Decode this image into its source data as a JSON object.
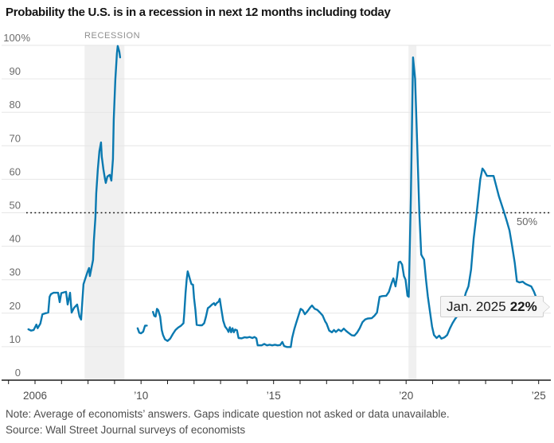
{
  "title": "Probability the U.S. is in a recession in next 12 months including today",
  "note": "Note: Average of economists’ answers. Gaps indicate question not asked or data unavailable.",
  "source": "Source: Wall Street Journal surveys of economists",
  "annotations": {
    "recession_label": "RECESSION",
    "threshold_label": "50%",
    "callout": {
      "date": "Jan. 2025",
      "value": "22%"
    }
  },
  "colors": {
    "line": "#0a79b0",
    "band": "#f0f0f0",
    "grid": "#e6e6e6",
    "axis": "#1a1a1a",
    "threshold": "#141414",
    "y_label": "#6b6b6b",
    "x_label": "#4d4d4d",
    "callout_bg": "#f6f6f6",
    "callout_border": "#cfcfcf"
  },
  "chart_data": {
    "type": "line",
    "title": "Probability the U.S. is in a recession in next 12 months including today",
    "xlabel": "",
    "ylabel": "",
    "x_unit": "year",
    "ylim": [
      0,
      100
    ],
    "xlim": [
      2005.6,
      2025.3
    ],
    "grid": "horizontal",
    "threshold": 50,
    "y_ticks": [
      {
        "value": 100,
        "label": "100",
        "suffix": "%"
      },
      {
        "value": 90,
        "label": "90",
        "suffix": ""
      },
      {
        "value": 80,
        "label": "80",
        "suffix": ""
      },
      {
        "value": 70,
        "label": "70",
        "suffix": ""
      },
      {
        "value": 60,
        "label": "60",
        "suffix": ""
      },
      {
        "value": 50,
        "label": "50",
        "suffix": ""
      },
      {
        "value": 40,
        "label": "40",
        "suffix": ""
      },
      {
        "value": 30,
        "label": "30",
        "suffix": ""
      },
      {
        "value": 20,
        "label": "20",
        "suffix": ""
      },
      {
        "value": 10,
        "label": "10",
        "suffix": ""
      },
      {
        "value": 0,
        "label": "0",
        "suffix": ""
      }
    ],
    "x_ticks": [
      {
        "year": 2006,
        "label": "2006"
      },
      {
        "year": 2010,
        "label": "’10"
      },
      {
        "year": 2015,
        "label": "’15"
      },
      {
        "year": 2020,
        "label": "’20"
      },
      {
        "year": 2025,
        "label": "’25"
      }
    ],
    "tick_years": [
      2005,
      2006,
      2007,
      2008,
      2009,
      2010,
      2011,
      2012,
      2013,
      2014,
      2015,
      2016,
      2017,
      2018,
      2019,
      2020,
      2021,
      2022,
      2023,
      2024,
      2025
    ],
    "recession_bands": [
      {
        "start": 2007.87,
        "end": 2009.37
      },
      {
        "start": 2020.09,
        "end": 2020.39
      }
    ],
    "series": [
      {
        "name": "Probability of recession (%)",
        "segments": [
          [
            [
              2005.75,
              15.2
            ],
            [
              2005.85,
              14.8
            ],
            [
              2005.95,
              15.0
            ],
            [
              2006.05,
              16.6
            ],
            [
              2006.1,
              15.5
            ],
            [
              2006.2,
              16.9
            ],
            [
              2006.28,
              19.7
            ],
            [
              2006.4,
              20.0
            ],
            [
              2006.5,
              20.2
            ],
            [
              2006.55,
              24.9
            ],
            [
              2006.6,
              25.7
            ],
            [
              2006.7,
              26.1
            ],
            [
              2006.87,
              26.1
            ],
            [
              2006.93,
              23.3
            ],
            [
              2006.99,
              26.0
            ],
            [
              2007.17,
              26.4
            ],
            [
              2007.23,
              22.6
            ],
            [
              2007.32,
              26.1
            ],
            [
              2007.38,
              20.2
            ],
            [
              2007.47,
              21.6
            ],
            [
              2007.59,
              22.6
            ],
            [
              2007.68,
              19.0
            ],
            [
              2007.74,
              18.1
            ],
            [
              2007.83,
              28.7
            ],
            [
              2007.98,
              32.3
            ],
            [
              2008.04,
              33.5
            ],
            [
              2008.07,
              31.1
            ],
            [
              2008.19,
              35.9
            ],
            [
              2008.22,
              41.6
            ],
            [
              2008.28,
              48.7
            ],
            [
              2008.31,
              55.8
            ],
            [
              2008.37,
              63.0
            ],
            [
              2008.43,
              68.4
            ],
            [
              2008.49,
              71.0
            ],
            [
              2008.52,
              66.7
            ],
            [
              2008.58,
              63.0
            ],
            [
              2008.64,
              60.1
            ],
            [
              2008.67,
              58.9
            ],
            [
              2008.73,
              60.8
            ],
            [
              2008.82,
              61.3
            ],
            [
              2008.88,
              59.6
            ],
            [
              2008.94,
              66.0
            ],
            [
              2008.97,
              77.9
            ],
            [
              2009.03,
              89.8
            ],
            [
              2009.09,
              97.6
            ],
            [
              2009.12,
              99.8
            ],
            [
              2009.18,
              98.1
            ],
            [
              2009.21,
              96.4
            ]
          ],
          [
            [
              2009.87,
              15.5
            ],
            [
              2009.93,
              14.2
            ],
            [
              2010.0,
              14.0
            ],
            [
              2010.08,
              14.5
            ],
            [
              2010.15,
              16.3
            ],
            [
              2010.22,
              16.3
            ]
          ],
          [
            [
              2010.45,
              20.4
            ],
            [
              2010.5,
              19.2
            ],
            [
              2010.55,
              19.0
            ],
            [
              2010.6,
              21.3
            ],
            [
              2010.65,
              20.9
            ],
            [
              2010.72,
              19.0
            ],
            [
              2010.78,
              15.0
            ],
            [
              2010.83,
              13.5
            ],
            [
              2010.9,
              12.2
            ],
            [
              2011.0,
              11.7
            ],
            [
              2011.1,
              12.4
            ],
            [
              2011.2,
              13.8
            ],
            [
              2011.3,
              15.0
            ],
            [
              2011.4,
              15.7
            ],
            [
              2011.5,
              16.2
            ],
            [
              2011.6,
              17.0
            ],
            [
              2011.63,
              20.0
            ],
            [
              2011.68,
              26.0
            ],
            [
              2011.72,
              30.0
            ],
            [
              2011.76,
              32.5
            ],
            [
              2011.8,
              31.5
            ],
            [
              2011.85,
              30.0
            ],
            [
              2011.9,
              28.7
            ],
            [
              2011.96,
              28.5
            ],
            [
              2012.0,
              24.5
            ],
            [
              2012.05,
              21.0
            ],
            [
              2012.1,
              16.5
            ],
            [
              2012.2,
              16.4
            ],
            [
              2012.3,
              16.4
            ],
            [
              2012.38,
              17.0
            ],
            [
              2012.45,
              19.0
            ],
            [
              2012.52,
              21.5
            ],
            [
              2012.6,
              22.0
            ],
            [
              2012.68,
              22.6
            ],
            [
              2012.75,
              23.0
            ],
            [
              2012.8,
              22.4
            ],
            [
              2012.85,
              23.0
            ],
            [
              2012.93,
              23.5
            ],
            [
              2012.97,
              24.3
            ],
            [
              2013.02,
              21.6
            ],
            [
              2013.1,
              17.8
            ],
            [
              2013.17,
              16.0
            ],
            [
              2013.25,
              15.2
            ],
            [
              2013.3,
              14.4
            ],
            [
              2013.35,
              15.8
            ],
            [
              2013.4,
              14.3
            ],
            [
              2013.45,
              15.5
            ],
            [
              2013.5,
              14.3
            ],
            [
              2013.55,
              15.1
            ],
            [
              2013.62,
              14.9
            ],
            [
              2013.68,
              12.6
            ],
            [
              2013.8,
              12.5
            ],
            [
              2013.9,
              12.8
            ],
            [
              2014.0,
              12.7
            ],
            [
              2014.1,
              12.9
            ],
            [
              2014.2,
              12.6
            ],
            [
              2014.28,
              12.9
            ],
            [
              2014.35,
              12.5
            ],
            [
              2014.4,
              10.4
            ],
            [
              2014.55,
              10.4
            ],
            [
              2014.65,
              10.8
            ],
            [
              2014.75,
              10.4
            ],
            [
              2014.85,
              10.6
            ],
            [
              2014.95,
              10.4
            ],
            [
              2015.05,
              10.6
            ],
            [
              2015.15,
              10.4
            ],
            [
              2015.25,
              10.5
            ],
            [
              2015.33,
              11.4
            ],
            [
              2015.4,
              10.2
            ],
            [
              2015.5,
              9.9
            ],
            [
              2015.65,
              9.9
            ],
            [
              2015.7,
              12.6
            ],
            [
              2015.78,
              15.2
            ],
            [
              2015.85,
              17.0
            ],
            [
              2015.95,
              19.5
            ],
            [
              2016.02,
              21.3
            ],
            [
              2016.1,
              20.9
            ],
            [
              2016.18,
              19.7
            ],
            [
              2016.28,
              20.6
            ],
            [
              2016.38,
              21.7
            ],
            [
              2016.45,
              22.3
            ],
            [
              2016.55,
              21.3
            ],
            [
              2016.65,
              21.0
            ],
            [
              2016.75,
              20.2
            ],
            [
              2016.85,
              19.3
            ],
            [
              2016.95,
              17.5
            ],
            [
              2017.0,
              16.9
            ],
            [
              2017.1,
              14.8
            ],
            [
              2017.2,
              14.3
            ],
            [
              2017.28,
              15.0
            ],
            [
              2017.35,
              14.4
            ],
            [
              2017.45,
              15.1
            ],
            [
              2017.55,
              14.6
            ],
            [
              2017.65,
              15.4
            ],
            [
              2017.75,
              14.6
            ],
            [
              2017.85,
              14.0
            ],
            [
              2017.95,
              13.4
            ],
            [
              2018.05,
              13.3
            ],
            [
              2018.15,
              14.2
            ],
            [
              2018.25,
              15.5
            ],
            [
              2018.35,
              17.3
            ],
            [
              2018.45,
              18.1
            ],
            [
              2018.55,
              18.4
            ],
            [
              2018.7,
              18.5
            ],
            [
              2018.8,
              19.2
            ],
            [
              2018.9,
              20.2
            ],
            [
              2019.0,
              24.9
            ],
            [
              2019.1,
              25.1
            ],
            [
              2019.25,
              25.2
            ],
            [
              2019.35,
              26.4
            ],
            [
              2019.45,
              28.9
            ],
            [
              2019.52,
              30.4
            ],
            [
              2019.6,
              28.0
            ],
            [
              2019.66,
              31.0
            ],
            [
              2019.72,
              35.2
            ],
            [
              2019.78,
              35.4
            ],
            [
              2019.85,
              34.5
            ],
            [
              2019.92,
              31.1
            ],
            [
              2019.98,
              30.0
            ],
            [
              2020.05,
              25.2
            ],
            [
              2020.1,
              24.9
            ],
            [
              2020.18,
              55.0
            ],
            [
              2020.26,
              96.4
            ],
            [
              2020.34,
              90.0
            ],
            [
              2020.42,
              70.0
            ],
            [
              2020.5,
              50.0
            ],
            [
              2020.57,
              37.5
            ],
            [
              2020.62,
              36.8
            ],
            [
              2020.68,
              36.0
            ],
            [
              2020.75,
              30.0
            ],
            [
              2020.82,
              25.0
            ],
            [
              2020.9,
              20.4
            ],
            [
              2020.98,
              16.0
            ],
            [
              2021.05,
              13.5
            ],
            [
              2021.15,
              12.6
            ],
            [
              2021.25,
              13.3
            ],
            [
              2021.33,
              12.4
            ],
            [
              2021.45,
              12.8
            ],
            [
              2021.55,
              13.5
            ],
            [
              2021.65,
              15.4
            ],
            [
              2021.75,
              17.0
            ],
            [
              2021.85,
              18.3
            ],
            [
              2021.95,
              19.3
            ],
            [
              2022.05,
              20.5
            ],
            [
              2022.15,
              23.0
            ],
            [
              2022.25,
              26.0
            ],
            [
              2022.35,
              28.0
            ],
            [
              2022.45,
              33.0
            ],
            [
              2022.55,
              42.3
            ],
            [
              2022.65,
              49.0
            ],
            [
              2022.72,
              54.2
            ],
            [
              2022.8,
              60.0
            ],
            [
              2022.88,
              63.2
            ],
            [
              2022.95,
              62.5
            ],
            [
              2023.05,
              61.0
            ],
            [
              2023.3,
              61.0
            ],
            [
              2023.4,
              58.0
            ],
            [
              2023.5,
              54.9
            ],
            [
              2023.6,
              52.5
            ],
            [
              2023.7,
              50.1
            ],
            [
              2023.8,
              47.5
            ],
            [
              2023.9,
              44.7
            ],
            [
              2024.0,
              40.0
            ],
            [
              2024.1,
              35.0
            ],
            [
              2024.18,
              29.5
            ],
            [
              2024.28,
              29.2
            ],
            [
              2024.4,
              29.4
            ],
            [
              2024.5,
              28.8
            ],
            [
              2024.6,
              28.4
            ],
            [
              2024.72,
              28.0
            ],
            [
              2024.82,
              26.5
            ],
            [
              2024.92,
              24.5
            ],
            [
              2025.0,
              22.6
            ],
            [
              2025.08,
              22.0
            ]
          ]
        ]
      }
    ],
    "annotations": {
      "recession_label": "RECESSION",
      "threshold_label": "50%",
      "last_point_label": "Jan. 2025 22%"
    }
  }
}
